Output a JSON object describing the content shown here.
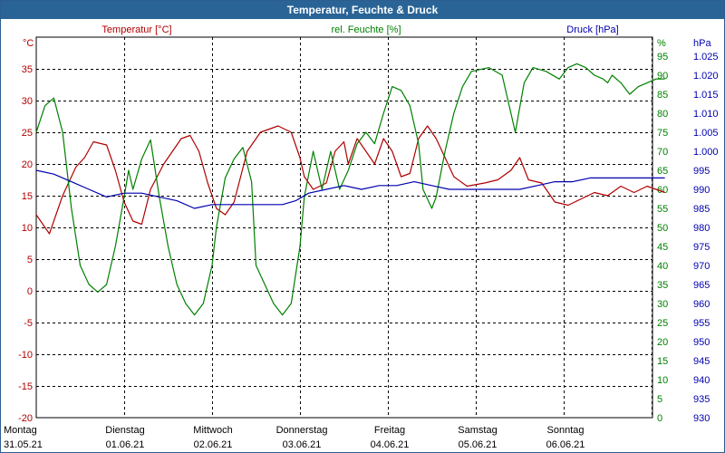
{
  "window": {
    "title": "Temperatur, Feuchte & Druck"
  },
  "colors": {
    "temperature": "#b00000",
    "humidity": "#008000",
    "pressure": "#0000b0",
    "grid": "#000000",
    "titlebar": "#2a6496"
  },
  "chart_data": {
    "type": "line",
    "title": "Temperatur, Feuchte & Druck",
    "grid": true,
    "x": {
      "range_days": [
        0,
        7.25
      ],
      "ticks": [
        {
          "day": "Montag",
          "date": "31.05.21"
        },
        {
          "day": "Dienstag",
          "date": "01.06.21"
        },
        {
          "day": "Mittwoch",
          "date": "02.06.21"
        },
        {
          "day": "Donnerstag",
          "date": "03.06.21"
        },
        {
          "day": "Freitag",
          "date": "04.06.21"
        },
        {
          "day": "Samstag",
          "date": "05.06.21"
        },
        {
          "day": "Sonntag",
          "date": "06.06.21"
        }
      ]
    },
    "axes": {
      "temperature": {
        "label": "Temperatur [°C]",
        "unit": "°C",
        "ylim": [
          -20,
          40
        ],
        "ticks": [
          -20,
          -15,
          -10,
          -5,
          0,
          5,
          10,
          15,
          20,
          25,
          30,
          35
        ]
      },
      "humidity": {
        "label": "rel. Feuchte [%]",
        "unit": "%",
        "ylim": [
          0,
          100
        ],
        "ticks": [
          0,
          5,
          10,
          15,
          20,
          25,
          30,
          35,
          40,
          45,
          50,
          55,
          60,
          65,
          70,
          75,
          80,
          85,
          90,
          95
        ]
      },
      "pressure": {
        "label": "Druck [hPa]",
        "unit": "hPa",
        "ylim": [
          930,
          1030
        ],
        "ticks": [
          "930",
          "935",
          "940",
          "945",
          "950",
          "955",
          "960",
          "965",
          "970",
          "975",
          "980",
          "985",
          "990",
          "995",
          "1.000",
          "1.005",
          "1.010",
          "1.015",
          "1.020",
          "1.025"
        ]
      }
    },
    "series": [
      {
        "name": "Temperatur [°C]",
        "axis": "temperature",
        "points": [
          [
            0,
            12
          ],
          [
            0.15,
            9
          ],
          [
            0.3,
            15
          ],
          [
            0.45,
            19.5
          ],
          [
            0.55,
            21
          ],
          [
            0.65,
            23.5
          ],
          [
            0.8,
            23
          ],
          [
            0.9,
            19
          ],
          [
            1,
            14
          ],
          [
            1.1,
            11
          ],
          [
            1.2,
            10.5
          ],
          [
            1.3,
            16
          ],
          [
            1.45,
            20
          ],
          [
            1.65,
            24
          ],
          [
            1.75,
            24.5
          ],
          [
            1.85,
            22
          ],
          [
            1.95,
            17
          ],
          [
            2.05,
            13
          ],
          [
            2.15,
            12
          ],
          [
            2.25,
            14
          ],
          [
            2.4,
            22
          ],
          [
            2.55,
            25
          ],
          [
            2.75,
            26
          ],
          [
            2.9,
            25
          ],
          [
            3,
            21
          ],
          [
            3.05,
            18
          ],
          [
            3.15,
            16
          ],
          [
            3.3,
            17
          ],
          [
            3.4,
            22
          ],
          [
            3.5,
            23.5
          ],
          [
            3.55,
            20
          ],
          [
            3.65,
            24
          ],
          [
            3.75,
            22
          ],
          [
            3.85,
            20
          ],
          [
            3.95,
            24
          ],
          [
            4.05,
            22
          ],
          [
            4.15,
            18
          ],
          [
            4.25,
            18.5
          ],
          [
            4.35,
            24
          ],
          [
            4.45,
            26
          ],
          [
            4.55,
            24
          ],
          [
            4.65,
            21
          ],
          [
            4.75,
            18
          ],
          [
            4.9,
            16.5
          ],
          [
            5.1,
            17
          ],
          [
            5.25,
            17.5
          ],
          [
            5.4,
            19
          ],
          [
            5.5,
            21
          ],
          [
            5.6,
            17.5
          ],
          [
            5.75,
            17
          ],
          [
            5.9,
            14
          ],
          [
            6.05,
            13.5
          ],
          [
            6.2,
            14.5
          ],
          [
            6.35,
            15.5
          ],
          [
            6.5,
            15
          ],
          [
            6.65,
            16.5
          ],
          [
            6.8,
            15.5
          ],
          [
            6.95,
            16.5
          ],
          [
            7.15,
            15.5
          ]
        ]
      },
      {
        "name": "rel. Feuchte [%]",
        "axis": "humidity",
        "points": [
          [
            0,
            75
          ],
          [
            0.1,
            82
          ],
          [
            0.2,
            84
          ],
          [
            0.3,
            75
          ],
          [
            0.4,
            55
          ],
          [
            0.5,
            40
          ],
          [
            0.6,
            35
          ],
          [
            0.7,
            33
          ],
          [
            0.8,
            35
          ],
          [
            0.9,
            45
          ],
          [
            1,
            58
          ],
          [
            1.05,
            65
          ],
          [
            1.1,
            60
          ],
          [
            1.2,
            68
          ],
          [
            1.3,
            73
          ],
          [
            1.4,
            58
          ],
          [
            1.5,
            45
          ],
          [
            1.6,
            35
          ],
          [
            1.7,
            30
          ],
          [
            1.8,
            27
          ],
          [
            1.9,
            30
          ],
          [
            2,
            40
          ],
          [
            2.05,
            50
          ],
          [
            2.15,
            63
          ],
          [
            2.25,
            68
          ],
          [
            2.35,
            71
          ],
          [
            2.45,
            62
          ],
          [
            2.5,
            40
          ],
          [
            2.6,
            35
          ],
          [
            2.7,
            30
          ],
          [
            2.8,
            27
          ],
          [
            2.9,
            30
          ],
          [
            3,
            45
          ],
          [
            3.05,
            58
          ],
          [
            3.15,
            70
          ],
          [
            3.25,
            60
          ],
          [
            3.35,
            70
          ],
          [
            3.45,
            60
          ],
          [
            3.55,
            65
          ],
          [
            3.65,
            72
          ],
          [
            3.75,
            75
          ],
          [
            3.85,
            72
          ],
          [
            3.95,
            80
          ],
          [
            4.05,
            87
          ],
          [
            4.15,
            86
          ],
          [
            4.25,
            82
          ],
          [
            4.35,
            72
          ],
          [
            4.4,
            60
          ],
          [
            4.5,
            55
          ],
          [
            4.55,
            58
          ],
          [
            4.65,
            70
          ],
          [
            4.75,
            80
          ],
          [
            4.85,
            87
          ],
          [
            4.95,
            91
          ],
          [
            5.15,
            92
          ],
          [
            5.3,
            90
          ],
          [
            5.4,
            80
          ],
          [
            5.45,
            75
          ],
          [
            5.55,
            88
          ],
          [
            5.65,
            92
          ],
          [
            5.8,
            91
          ],
          [
            5.95,
            89
          ],
          [
            6.05,
            92
          ],
          [
            6.15,
            93
          ],
          [
            6.25,
            92
          ],
          [
            6.35,
            90
          ],
          [
            6.45,
            89
          ],
          [
            6.5,
            88
          ],
          [
            6.55,
            90
          ],
          [
            6.65,
            88
          ],
          [
            6.75,
            85
          ],
          [
            6.85,
            87
          ],
          [
            6.95,
            88
          ],
          [
            7.05,
            89
          ],
          [
            7.15,
            89
          ]
        ]
      },
      {
        "name": "Druck [hPa]",
        "axis": "pressure",
        "points": [
          [
            0,
            995
          ],
          [
            0.2,
            994
          ],
          [
            0.4,
            992
          ],
          [
            0.6,
            990
          ],
          [
            0.8,
            988
          ],
          [
            1,
            989
          ],
          [
            1.2,
            989
          ],
          [
            1.4,
            988
          ],
          [
            1.6,
            987
          ],
          [
            1.8,
            985
          ],
          [
            2,
            986
          ],
          [
            2.2,
            986
          ],
          [
            2.4,
            986
          ],
          [
            2.6,
            986
          ],
          [
            2.8,
            986
          ],
          [
            2.95,
            987
          ],
          [
            3.1,
            989
          ],
          [
            3.3,
            990
          ],
          [
            3.5,
            991
          ],
          [
            3.7,
            990
          ],
          [
            3.9,
            991
          ],
          [
            4.1,
            991
          ],
          [
            4.3,
            992
          ],
          [
            4.5,
            991
          ],
          [
            4.7,
            990
          ],
          [
            4.9,
            990
          ],
          [
            5.1,
            990
          ],
          [
            5.3,
            990
          ],
          [
            5.5,
            990
          ],
          [
            5.7,
            991
          ],
          [
            5.9,
            992
          ],
          [
            6.1,
            992
          ],
          [
            6.3,
            993
          ],
          [
            6.5,
            993
          ],
          [
            6.7,
            993
          ],
          [
            6.9,
            993
          ],
          [
            7.15,
            993
          ]
        ]
      }
    ]
  }
}
